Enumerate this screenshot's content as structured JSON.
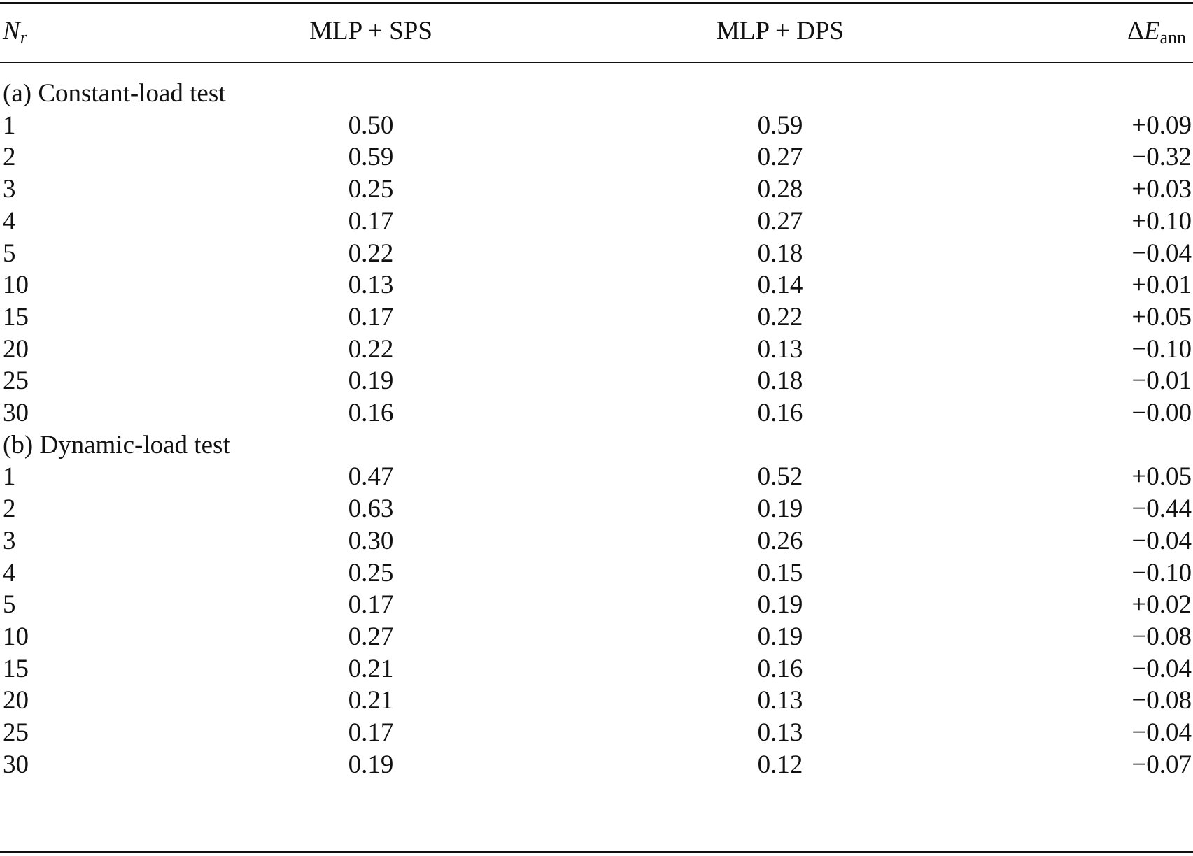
{
  "table": {
    "headers": {
      "nr_main": "N",
      "nr_sub": "r",
      "sps": "MLP + SPS",
      "dps": "MLP + DPS",
      "de_delta": "Δ",
      "de_main": "E",
      "de_sub": "ann"
    },
    "section_a": {
      "label": "(a) Constant-load test",
      "rows": [
        {
          "nr": "1",
          "sps": "0.50",
          "dps": "0.59",
          "de": "+0.09"
        },
        {
          "nr": "2",
          "sps": "0.59",
          "dps": "0.27",
          "de": "−0.32"
        },
        {
          "nr": "3",
          "sps": "0.25",
          "dps": "0.28",
          "de": "+0.03"
        },
        {
          "nr": "4",
          "sps": "0.17",
          "dps": "0.27",
          "de": "+0.10"
        },
        {
          "nr": "5",
          "sps": "0.22",
          "dps": "0.18",
          "de": "−0.04"
        },
        {
          "nr": "10",
          "sps": "0.13",
          "dps": "0.14",
          "de": "+0.01"
        },
        {
          "nr": "15",
          "sps": "0.17",
          "dps": "0.22",
          "de": "+0.05"
        },
        {
          "nr": "20",
          "sps": "0.22",
          "dps": "0.13",
          "de": "−0.10"
        },
        {
          "nr": "25",
          "sps": "0.19",
          "dps": "0.18",
          "de": "−0.01"
        },
        {
          "nr": "30",
          "sps": "0.16",
          "dps": "0.16",
          "de": "−0.00"
        }
      ]
    },
    "section_b": {
      "label": "(b) Dynamic-load test",
      "rows": [
        {
          "nr": "1",
          "sps": "0.47",
          "dps": "0.52",
          "de": "+0.05"
        },
        {
          "nr": "2",
          "sps": "0.63",
          "dps": "0.19",
          "de": "−0.44"
        },
        {
          "nr": "3",
          "sps": "0.30",
          "dps": "0.26",
          "de": "−0.04"
        },
        {
          "nr": "4",
          "sps": "0.25",
          "dps": "0.15",
          "de": "−0.10"
        },
        {
          "nr": "5",
          "sps": "0.17",
          "dps": "0.19",
          "de": "+0.02"
        },
        {
          "nr": "10",
          "sps": "0.27",
          "dps": "0.19",
          "de": "−0.08"
        },
        {
          "nr": "15",
          "sps": "0.21",
          "dps": "0.16",
          "de": "−0.04"
        },
        {
          "nr": "20",
          "sps": "0.21",
          "dps": "0.13",
          "de": "−0.08"
        },
        {
          "nr": "25",
          "sps": "0.17",
          "dps": "0.13",
          "de": "−0.04"
        },
        {
          "nr": "30",
          "sps": "0.19",
          "dps": "0.12",
          "de": "−0.07"
        }
      ]
    }
  }
}
